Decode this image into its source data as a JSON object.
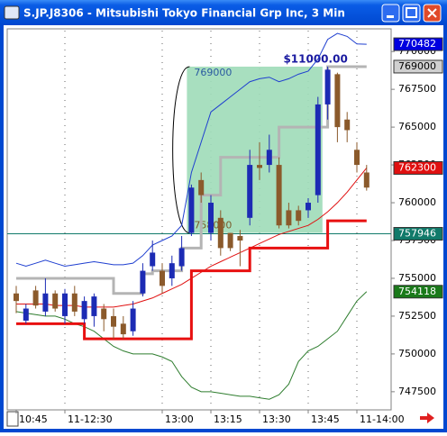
{
  "window": {
    "title": "S.JP.J8306 - Mitsubishi Tokyo Financial Grp Inc, 3 Min"
  },
  "chart_data": {
    "type": "candlestick",
    "categories": [
      "10:45",
      null,
      null,
      null,
      null,
      "11-12:30",
      null,
      null,
      null,
      null,
      null,
      null,
      null,
      null,
      null,
      "13:00",
      null,
      null,
      null,
      null,
      "13:15",
      null,
      null,
      null,
      null,
      "13:30",
      null,
      null,
      null,
      null,
      "13:45",
      null,
      null,
      null,
      null,
      "11-14:00",
      null
    ],
    "open": [
      754000,
      752200,
      754200,
      752800,
      754000,
      752500,
      754000,
      752300,
      752500,
      753000,
      752500,
      752000,
      751500,
      754000,
      755800,
      755500,
      755000,
      755800,
      758000,
      761500,
      758000,
      759000,
      758000,
      757800,
      759000,
      762500,
      762500,
      762500,
      759500,
      759500,
      759500,
      760500,
      766500,
      768500,
      765500,
      763500,
      762000
    ],
    "high": [
      754500,
      753300,
      754500,
      755000,
      754200,
      754300,
      754500,
      753800,
      754000,
      753300,
      753000,
      752500,
      753500,
      756000,
      757500,
      756000,
      756500,
      757800,
      761200,
      762000,
      760500,
      759500,
      758000,
      758200,
      763500,
      764000,
      764500,
      763000,
      760000,
      759800,
      760300,
      767000,
      769000,
      768600,
      766000,
      764000,
      762500
    ],
    "low": [
      752700,
      752000,
      753000,
      752500,
      752800,
      752000,
      752500,
      752000,
      751800,
      751500,
      751000,
      751000,
      751200,
      753800,
      755500,
      754000,
      754500,
      755500,
      757800,
      760000,
      757500,
      756500,
      756800,
      755800,
      758500,
      761500,
      762000,
      758300,
      758300,
      758500,
      759000,
      760000,
      765500,
      764000,
      764000,
      762000,
      760800
    ],
    "close": [
      753500,
      753000,
      753200,
      754000,
      753000,
      754000,
      752800,
      753500,
      753800,
      752300,
      751800,
      751300,
      753000,
      755500,
      756700,
      754500,
      756000,
      757000,
      761000,
      760500,
      760000,
      757000,
      757000,
      757500,
      762500,
      762300,
      763500,
      758500,
      758500,
      758800,
      760000,
      766500,
      768800,
      765000,
      764800,
      762500,
      761000
    ],
    "up_color": "#1c2bb4",
    "down_color": "#8b5a2b",
    "series": [
      {
        "color": "#1f3fd0",
        "line_width": 1,
        "step": false,
        "values": [
          756000,
          755800,
          756000,
          756200,
          756000,
          755800,
          755900,
          756000,
          756100,
          756000,
          755900,
          755900,
          756000,
          756500,
          757200,
          757500,
          757800,
          758500,
          762000,
          764000,
          766000,
          766500,
          767000,
          767500,
          768000,
          768200,
          768300,
          768000,
          768200,
          768500,
          768700,
          769500,
          770800,
          771200,
          771000,
          770500,
          770482
        ]
      },
      {
        "color": "#2e7d2e",
        "line_width": 1,
        "step": false,
        "values": [
          752800,
          752700,
          752600,
          752500,
          752500,
          752300,
          752000,
          751800,
          751500,
          751000,
          750500,
          750200,
          750000,
          750000,
          750000,
          749800,
          749500,
          748500,
          747800,
          747500,
          747500,
          747400,
          747300,
          747200,
          747200,
          747100,
          747000,
          747300,
          748000,
          749500,
          750200,
          750500,
          751000,
          751500,
          752500,
          753500,
          754118
        ]
      },
      {
        "color": "#e01010",
        "line_width": 1,
        "step": false,
        "values": [
          753300,
          753300,
          753300,
          753300,
          753200,
          753200,
          753200,
          753100,
          753100,
          753100,
          753100,
          753200,
          753300,
          753500,
          753700,
          754000,
          754300,
          754600,
          755000,
          755400,
          755800,
          756100,
          756400,
          756700,
          757000,
          757300,
          757600,
          757900,
          758100,
          758300,
          758500,
          758900,
          759400,
          760000,
          760700,
          761500,
          762300
        ]
      },
      {
        "color": "#b4b4b4",
        "line_width": 3,
        "step": true,
        "values": [
          755000,
          755000,
          755000,
          755000,
          755000,
          755000,
          755000,
          755000,
          755000,
          755000,
          754000,
          754000,
          754000,
          755300,
          755500,
          755500,
          755500,
          757000,
          757000,
          760500,
          760500,
          763000,
          763000,
          763000,
          763000,
          763000,
          763000,
          765000,
          765000,
          765000,
          765000,
          765000,
          769000,
          769000,
          769000,
          769000,
          769000
        ]
      },
      {
        "color": "#e81010",
        "line_width": 3,
        "step": true,
        "values": [
          752000,
          752000,
          752000,
          752000,
          752000,
          752000,
          752000,
          751000,
          751000,
          751000,
          751000,
          751000,
          751000,
          751000,
          751000,
          751000,
          751000,
          751000,
          755500,
          755500,
          755500,
          755500,
          755500,
          755500,
          757000,
          757000,
          757000,
          757000,
          757000,
          757000,
          757000,
          757000,
          758800,
          758800,
          758800,
          758800,
          758800
        ]
      }
    ],
    "box": {
      "start": 18,
      "end": 31,
      "low": 758000,
      "high": 769000,
      "label": "$11000.00",
      "color": "#9fdcb8"
    },
    "markers": [
      {
        "value": 770482,
        "color": "#0000e0",
        "text_color": "#ffffff",
        "line": false
      },
      {
        "value": 769000,
        "color": "#d0d0d0",
        "text_color": "#000000",
        "line": false
      },
      {
        "value": 762300,
        "color": "#e01010",
        "text_color": "#ffffff",
        "line": false
      },
      {
        "value": 757946,
        "color": "#117a6a",
        "text_color": "#ffffff",
        "line": true
      },
      {
        "value": 754118,
        "color": "#1a7a1a",
        "text_color": "#ffffff",
        "line": false
      }
    ],
    "ylim": [
      746300,
      771500
    ],
    "yticks": [
      747500,
      750000,
      752500,
      755000,
      757500,
      760000,
      762500,
      765000,
      767500,
      770000
    ],
    "grid": true
  }
}
